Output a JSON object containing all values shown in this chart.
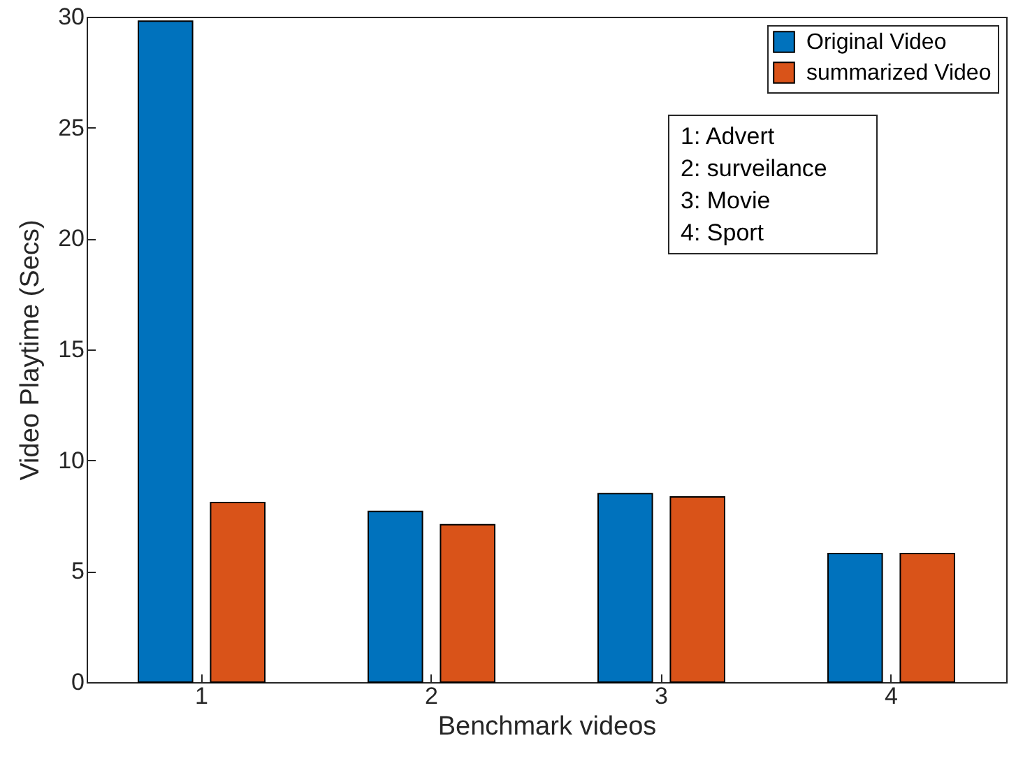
{
  "chart_data": {
    "type": "bar",
    "xlabel": "Benchmark videos",
    "ylabel": "Video Playtime (Secs)",
    "categories": [
      "1",
      "2",
      "3",
      "4"
    ],
    "series": [
      {
        "name": "Original Video",
        "color": "#0072bd",
        "values": [
          29.8,
          7.7,
          8.5,
          5.8
        ]
      },
      {
        "name": "summarized Video",
        "color": "#d95319",
        "values": [
          8.1,
          7.1,
          8.35,
          5.8
        ]
      }
    ],
    "ylim": [
      0,
      30
    ],
    "yticks": [
      0,
      5,
      10,
      15,
      20,
      25,
      30
    ],
    "grid": false,
    "legend": "top right",
    "annotations": [
      "1: Advert",
      "2: surveilance",
      "3: Movie",
      "4: Sport"
    ]
  }
}
